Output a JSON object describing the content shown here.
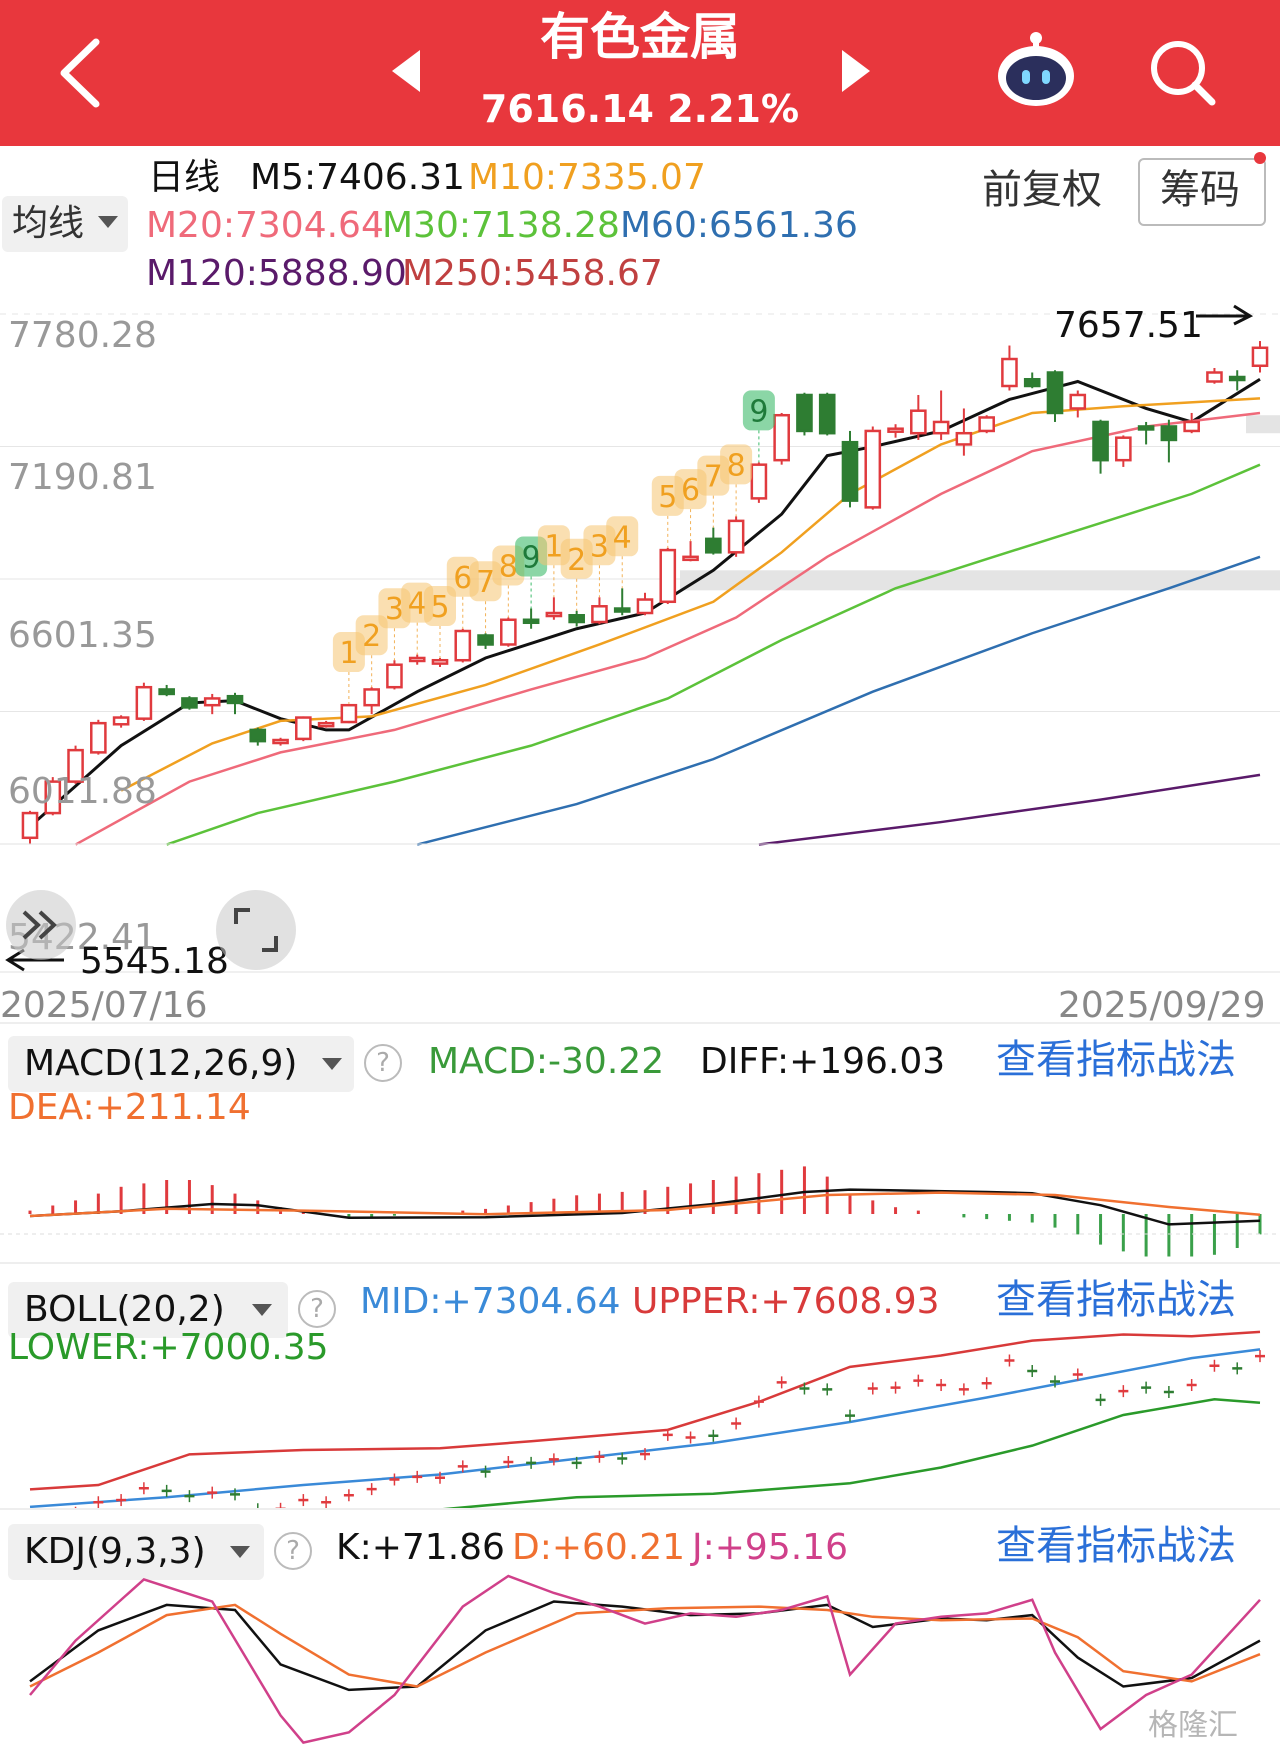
{
  "header": {
    "title": "有色金属",
    "price": "7616.14",
    "change": "2.21%"
  },
  "ma_bar": {
    "period": "日线",
    "ma_selector": "均线",
    "adjust": "前复权",
    "chips": "筹码",
    "m5": "M5:7406.31",
    "m10": "M10:7335.07",
    "m20": "M20:7304.64",
    "m30": "M30:7138.28",
    "m60": "M60:6561.36",
    "m120": "M120:5888.90",
    "m250": "M250:5458.67"
  },
  "colors": {
    "brand": "#e8373d",
    "m5": "#111111",
    "m10": "#f0a020",
    "m20": "#ef6a7a",
    "m30": "#5cc23a",
    "m60": "#2f6fb0",
    "m120": "#5a1a6a",
    "m250": "#c04040",
    "up": "#e03a3e",
    "down": "#2e7d32",
    "td_sell": "#f6c471",
    "td_buy": "#3dbb6b"
  },
  "chart_data": [
    {
      "type": "candlestick",
      "title": "",
      "x_start": "2025/07/16",
      "x_end": "2025/09/29",
      "y_ticks": [
        "7780.28",
        "7190.81",
        "6601.35",
        "6011.88",
        "5422.41"
      ],
      "ylim": [
        5422.41,
        7780.28
      ],
      "high_label": "7657.51",
      "low_label": "5545.18",
      "candles": [
        [
          5450,
          5560,
          5420,
          5570
        ],
        [
          5560,
          5700,
          5550,
          5720
        ],
        [
          5700,
          5840,
          5690,
          5860
        ],
        [
          5830,
          5960,
          5820,
          5975
        ],
        [
          5955,
          5985,
          5940,
          5995
        ],
        [
          5980,
          6120,
          5970,
          6140
        ],
        [
          6110,
          6090,
          6080,
          6130
        ],
        [
          6070,
          6030,
          6020,
          6080
        ],
        [
          6040,
          6070,
          6000,
          6090
        ],
        [
          6080,
          6050,
          6000,
          6095
        ],
        [
          5930,
          5880,
          5860,
          5940
        ],
        [
          5880,
          5885,
          5860,
          5895
        ],
        [
          5890,
          5985,
          5880,
          5990
        ],
        [
          5950,
          5960,
          5940,
          5970
        ],
        [
          5965,
          6040,
          5960,
          6045
        ],
        [
          6040,
          6110,
          6000,
          6120
        ],
        [
          6120,
          6220,
          6110,
          6240
        ],
        [
          6245,
          6250,
          6220,
          6265
        ],
        [
          6225,
          6240,
          6210,
          6250
        ],
        [
          6240,
          6370,
          6230,
          6380
        ],
        [
          6350,
          6310,
          6290,
          6360
        ],
        [
          6310,
          6420,
          6300,
          6430
        ],
        [
          6420,
          6410,
          6380,
          6470
        ],
        [
          6445,
          6450,
          6420,
          6520
        ],
        [
          6440,
          6410,
          6390,
          6460
        ],
        [
          6410,
          6480,
          6400,
          6520
        ],
        [
          6470,
          6460,
          6440,
          6560
        ],
        [
          6450,
          6510,
          6440,
          6540
        ],
        [
          6500,
          6730,
          6490,
          6740
        ],
        [
          6700,
          6700,
          6680,
          6770
        ],
        [
          6780,
          6720,
          6710,
          6830
        ],
        [
          6720,
          6860,
          6700,
          6880
        ],
        [
          6960,
          7110,
          6940,
          7120
        ],
        [
          7130,
          7330,
          7110,
          7340
        ],
        [
          7420,
          7260,
          7240,
          7430
        ],
        [
          7420,
          7250,
          7240,
          7430
        ],
        [
          7210,
          6950,
          6920,
          7260
        ],
        [
          6920,
          7260,
          6910,
          7280
        ],
        [
          7270,
          7270,
          7230,
          7290
        ],
        [
          7250,
          7350,
          7220,
          7420
        ],
        [
          7250,
          7300,
          7220,
          7440
        ],
        [
          7200,
          7250,
          7150,
          7360
        ],
        [
          7260,
          7320,
          7250,
          7330
        ],
        [
          7460,
          7580,
          7440,
          7640
        ],
        [
          7490,
          7460,
          7450,
          7520
        ],
        [
          7520,
          7340,
          7300,
          7530
        ],
        [
          7360,
          7420,
          7320,
          7440
        ],
        [
          7300,
          7130,
          7070,
          7310
        ],
        [
          7130,
          7230,
          7100,
          7240
        ],
        [
          7280,
          7270,
          7200,
          7300
        ],
        [
          7280,
          7220,
          7120,
          7310
        ],
        [
          7260,
          7300,
          7250,
          7340
        ],
        [
          7480,
          7520,
          7470,
          7540
        ],
        [
          7500,
          7490,
          7440,
          7530
        ],
        [
          7550,
          7630,
          7520,
          7660
        ]
      ],
      "td_labels": [
        {
          "i": 14,
          "t": "1",
          "k": "s"
        },
        {
          "i": 15,
          "t": "2",
          "k": "s"
        },
        {
          "i": 16,
          "t": "3",
          "k": "s"
        },
        {
          "i": 17,
          "t": "4",
          "k": "s"
        },
        {
          "i": 18,
          "t": "5",
          "k": "s"
        },
        {
          "i": 19,
          "t": "6",
          "k": "s"
        },
        {
          "i": 20,
          "t": "7",
          "k": "s"
        },
        {
          "i": 21,
          "t": "8",
          "k": "s"
        },
        {
          "i": 22,
          "t": "9",
          "k": "b"
        },
        {
          "i": 23,
          "t": "1",
          "k": "s"
        },
        {
          "i": 24,
          "t": "2",
          "k": "s"
        },
        {
          "i": 25,
          "t": "3",
          "k": "s"
        },
        {
          "i": 26,
          "t": "4",
          "k": "s"
        },
        {
          "i": 28,
          "t": "5",
          "k": "s"
        },
        {
          "i": 29,
          "t": "6",
          "k": "s"
        },
        {
          "i": 30,
          "t": "7",
          "k": "s"
        },
        {
          "i": 31,
          "t": "8",
          "k": "s"
        },
        {
          "i": 32,
          "t": "9",
          "k": "b"
        }
      ],
      "ma_lines": {
        "m5": [
          [
            0,
            5500
          ],
          [
            4,
            5860
          ],
          [
            7,
            6050
          ],
          [
            9,
            6060
          ],
          [
            11,
            5980
          ],
          [
            13,
            5930
          ],
          [
            14,
            5930
          ],
          [
            17,
            6100
          ],
          [
            20,
            6250
          ],
          [
            24,
            6380
          ],
          [
            27,
            6450
          ],
          [
            30,
            6640
          ],
          [
            33,
            6890
          ],
          [
            35,
            7150
          ],
          [
            37,
            7190
          ],
          [
            40,
            7260
          ],
          [
            43,
            7400
          ],
          [
            46,
            7480
          ],
          [
            49,
            7360
          ],
          [
            51,
            7300
          ],
          [
            54,
            7490
          ]
        ],
        "m10": [
          [
            4,
            5660
          ],
          [
            8,
            5870
          ],
          [
            11,
            5970
          ],
          [
            15,
            5990
          ],
          [
            20,
            6130
          ],
          [
            25,
            6310
          ],
          [
            30,
            6500
          ],
          [
            33,
            6720
          ],
          [
            36,
            6980
          ],
          [
            40,
            7200
          ],
          [
            44,
            7340
          ],
          [
            48,
            7370
          ],
          [
            54,
            7405
          ]
        ],
        "m20": [
          [
            2,
            5420
          ],
          [
            7,
            5700
          ],
          [
            11,
            5830
          ],
          [
            16,
            5930
          ],
          [
            22,
            6110
          ],
          [
            27,
            6250
          ],
          [
            31,
            6430
          ],
          [
            35,
            6700
          ],
          [
            40,
            6980
          ],
          [
            44,
            7170
          ],
          [
            49,
            7280
          ],
          [
            54,
            7340
          ]
        ],
        "m30": [
          [
            6,
            5420
          ],
          [
            10,
            5560
          ],
          [
            16,
            5700
          ],
          [
            22,
            5860
          ],
          [
            28,
            6070
          ],
          [
            33,
            6330
          ],
          [
            38,
            6560
          ],
          [
            42,
            6690
          ],
          [
            47,
            6850
          ],
          [
            51,
            6980
          ],
          [
            54,
            7110
          ]
        ],
        "m60": [
          [
            17,
            5420
          ],
          [
            24,
            5600
          ],
          [
            30,
            5800
          ],
          [
            37,
            6100
          ],
          [
            44,
            6360
          ],
          [
            50,
            6560
          ],
          [
            54,
            6700
          ]
        ],
        "m120": [
          [
            32,
            5420
          ],
          [
            40,
            5520
          ],
          [
            47,
            5620
          ],
          [
            54,
            5730
          ]
        ]
      }
    },
    {
      "type": "macd",
      "title": "MACD(12,26,9)",
      "series": [
        {
          "name": "DIFF",
          "points": [
            [
              0,
              0.4
            ],
            [
              4,
              0.48
            ],
            [
              8,
              0.6
            ],
            [
              10,
              0.58
            ],
            [
              14,
              0.37
            ],
            [
              20,
              0.38
            ],
            [
              26,
              0.45
            ],
            [
              30,
              0.6
            ],
            [
              34,
              0.8
            ],
            [
              36,
              0.84
            ],
            [
              42,
              0.8
            ],
            [
              44,
              0.78
            ],
            [
              47,
              0.58
            ],
            [
              50,
              0.26
            ],
            [
              54,
              0.32
            ]
          ]
        },
        {
          "name": "DEA",
          "points": [
            [
              0,
              0.4
            ],
            [
              6,
              0.52
            ],
            [
              12,
              0.49
            ],
            [
              20,
              0.43
            ],
            [
              28,
              0.5
            ],
            [
              35,
              0.75
            ],
            [
              40,
              0.79
            ],
            [
              45,
              0.75
            ],
            [
              50,
              0.55
            ],
            [
              54,
              0.42
            ]
          ]
        }
      ],
      "hist": [
        0.02,
        0.05,
        0.08,
        0.12,
        0.16,
        0.18,
        0.2,
        0.2,
        0.17,
        0.12,
        0.08,
        0.04,
        0.01,
        -0.01,
        -0.02,
        -0.02,
        -0.01,
        0.0,
        0.0,
        0.02,
        0.03,
        0.05,
        0.07,
        0.09,
        0.11,
        0.12,
        0.13,
        0.14,
        0.16,
        0.18,
        0.2,
        0.22,
        0.24,
        0.26,
        0.28,
        0.22,
        0.12,
        0.08,
        0.04,
        0.02,
        0.0,
        -0.02,
        -0.03,
        -0.04,
        -0.05,
        -0.08,
        -0.12,
        -0.18,
        -0.22,
        -0.25,
        -0.25,
        -0.25,
        -0.24,
        -0.2,
        -0.12
      ],
      "macd": "MACD:-30.22",
      "diff": "DIFF:+196.03",
      "dea": "DEA:+211.14",
      "link": "查看指标战法"
    },
    {
      "type": "boll",
      "title": "BOLL(20,2)",
      "mid": "MID:+7304.64",
      "upper": "UPPER:+7608.93",
      "lower": "LOWER:+7000.35",
      "link": "查看指标战法"
    },
    {
      "type": "kdj",
      "title": "KDJ(9,3,3)",
      "k": "K:+71.86",
      "d": "D:+60.21",
      "j": "J:+95.16",
      "link": "查看指标战法",
      "series": [
        {
          "name": "K",
          "points": [
            [
              0,
              0.38
            ],
            [
              3,
              0.68
            ],
            [
              6,
              0.83
            ],
            [
              9,
              0.8
            ],
            [
              11,
              0.48
            ],
            [
              14,
              0.33
            ],
            [
              17,
              0.35
            ],
            [
              20,
              0.68
            ],
            [
              23,
              0.85
            ],
            [
              26,
              0.82
            ],
            [
              29,
              0.77
            ],
            [
              32,
              0.78
            ],
            [
              35,
              0.83
            ],
            [
              37,
              0.7
            ],
            [
              40,
              0.75
            ],
            [
              42,
              0.74
            ],
            [
              44,
              0.77
            ],
            [
              46,
              0.52
            ],
            [
              48,
              0.35
            ],
            [
              51,
              0.4
            ],
            [
              54,
              0.62
            ]
          ]
        },
        {
          "name": "D",
          "points": [
            [
              0,
              0.35
            ],
            [
              3,
              0.55
            ],
            [
              6,
              0.77
            ],
            [
              9,
              0.83
            ],
            [
              11,
              0.66
            ],
            [
              14,
              0.42
            ],
            [
              17,
              0.35
            ],
            [
              20,
              0.55
            ],
            [
              24,
              0.78
            ],
            [
              28,
              0.81
            ],
            [
              32,
              0.82
            ],
            [
              35,
              0.8
            ],
            [
              37,
              0.76
            ],
            [
              40,
              0.74
            ],
            [
              44,
              0.75
            ],
            [
              46,
              0.64
            ],
            [
              48,
              0.44
            ],
            [
              51,
              0.38
            ],
            [
              54,
              0.54
            ]
          ]
        },
        {
          "name": "J",
          "points": [
            [
              0,
              0.3
            ],
            [
              2,
              0.62
            ],
            [
              5,
              0.98
            ],
            [
              8,
              0.85
            ],
            [
              11,
              0.18
            ],
            [
              12,
              0.02
            ],
            [
              14,
              0.08
            ],
            [
              16,
              0.3
            ],
            [
              19,
              0.82
            ],
            [
              21,
              1.0
            ],
            [
              23,
              0.9
            ],
            [
              25,
              0.82
            ],
            [
              27,
              0.72
            ],
            [
              29,
              0.78
            ],
            [
              31,
              0.76
            ],
            [
              33,
              0.8
            ],
            [
              35,
              0.88
            ],
            [
              36,
              0.42
            ],
            [
              38,
              0.72
            ],
            [
              40,
              0.76
            ],
            [
              42,
              0.78
            ],
            [
              44,
              0.86
            ],
            [
              45,
              0.55
            ],
            [
              47,
              0.1
            ],
            [
              49,
              0.3
            ],
            [
              51,
              0.42
            ],
            [
              54,
              0.86
            ]
          ]
        }
      ]
    }
  ],
  "watermark": "格隆汇"
}
